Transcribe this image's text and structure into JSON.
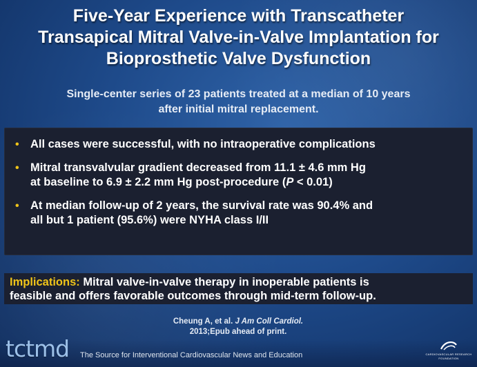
{
  "slide": {
    "title_lines": [
      "Five-Year Experience with Transcatheter",
      "Transapical Mitral Valve-in-Valve Implantation for",
      "Bioprosthetic Valve Dysfunction"
    ],
    "subtitle_lines": [
      "Single-center series of 23 patients treated at a median of 10 years",
      "after initial mitral replacement."
    ],
    "bullets": {
      "b1": "All cases were successful, with no intraoperative complications",
      "b2_line1": "Mitral transvalvular gradient decreased from 11.1 ± 4.6 mm Hg",
      "b2_line2_pre": "at baseline to 6.9 ± 2.2 mm Hg post-procedure (",
      "b2_pvar": "P",
      "b2_line2_post": " < 0.01)",
      "b3_line1": "At median follow-up of 2 years, the survival rate was 90.4% and",
      "b3_line2": "all but 1 patient (95.6%) were NYHA class I/II"
    },
    "bullet_marker": "•",
    "implications": {
      "label": "Implications:",
      "text_line1": " Mitral valve-in-valve therapy in inoperable patients is",
      "text_line2": "feasible and offers favorable outcomes through mid-term follow-up."
    },
    "citation": {
      "authors": "Cheung A, et al. ",
      "journal": "J Am Coll Cardiol.",
      "details": "2013;Epub ahead of print."
    },
    "footer": {
      "logo": "tctmd",
      "tagline": "The Source for Interventional Cardiovascular News and Education",
      "crf_line1": "CARDIOVASCULAR RESEARCH",
      "crf_line2": "FOUNDATION"
    }
  },
  "colors": {
    "background": "#1e4a8a",
    "box": "#1b2030",
    "accent_yellow": "#f0c419",
    "logo_blue": "#9cc0e8"
  }
}
